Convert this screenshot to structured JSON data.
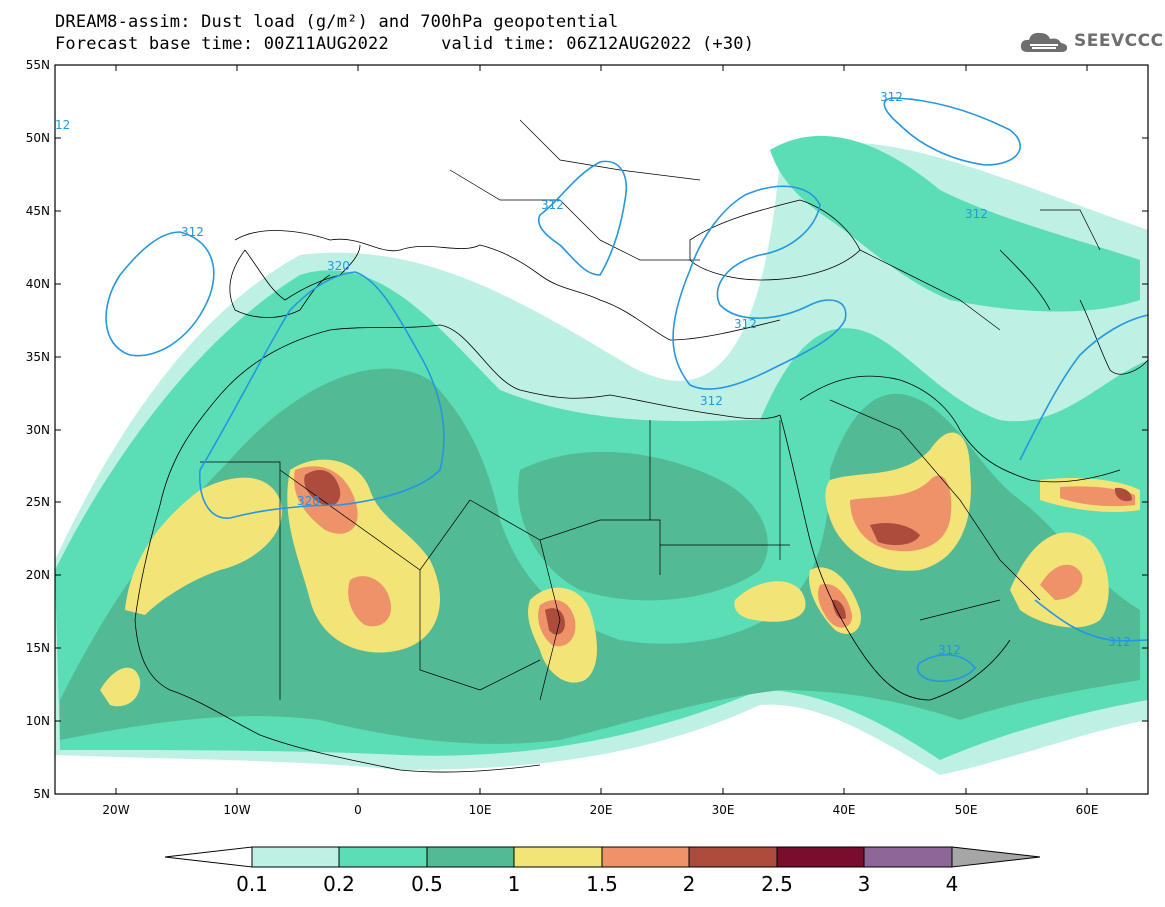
{
  "header": {
    "title_line1": "DREAM8-assim: Dust load (g/m²) and 700hPa geopotential",
    "title_line2": "Forecast base time: 00Z11AUG2022     valid time: 06Z12AUG2022 (+30)",
    "logo_text": "SEEVCCC"
  },
  "map": {
    "lon_range": [
      -25,
      65
    ],
    "lat_range": [
      5,
      55
    ],
    "lat_ticks": [
      "5N",
      "10N",
      "15N",
      "20N",
      "25N",
      "30N",
      "35N",
      "40N",
      "45N",
      "50N",
      "55N"
    ],
    "lon_ticks": [
      "20W",
      "10W",
      "0",
      "10E",
      "20E",
      "30E",
      "40E",
      "50E",
      "60E"
    ],
    "contour_labels": [
      "312",
      "312",
      "320",
      "312",
      "312",
      "320",
      "312",
      "312",
      "312",
      "312",
      "12"
    ]
  },
  "colorbar": {
    "labels": [
      "0.1",
      "0.2",
      "0.5",
      "1",
      "1.5",
      "2",
      "2.5",
      "3",
      "4"
    ],
    "colors": [
      "#ffffff",
      "#bff0e4",
      "#5bdeb6",
      "#52ba95",
      "#f3e477",
      "#ee9369",
      "#ab4c3d",
      "#7a0c2e",
      "#8e6798",
      "#a6a6a6"
    ]
  },
  "colors": {
    "contour": "#2596e0",
    "land": "#ffffff",
    "border": "#000000"
  }
}
